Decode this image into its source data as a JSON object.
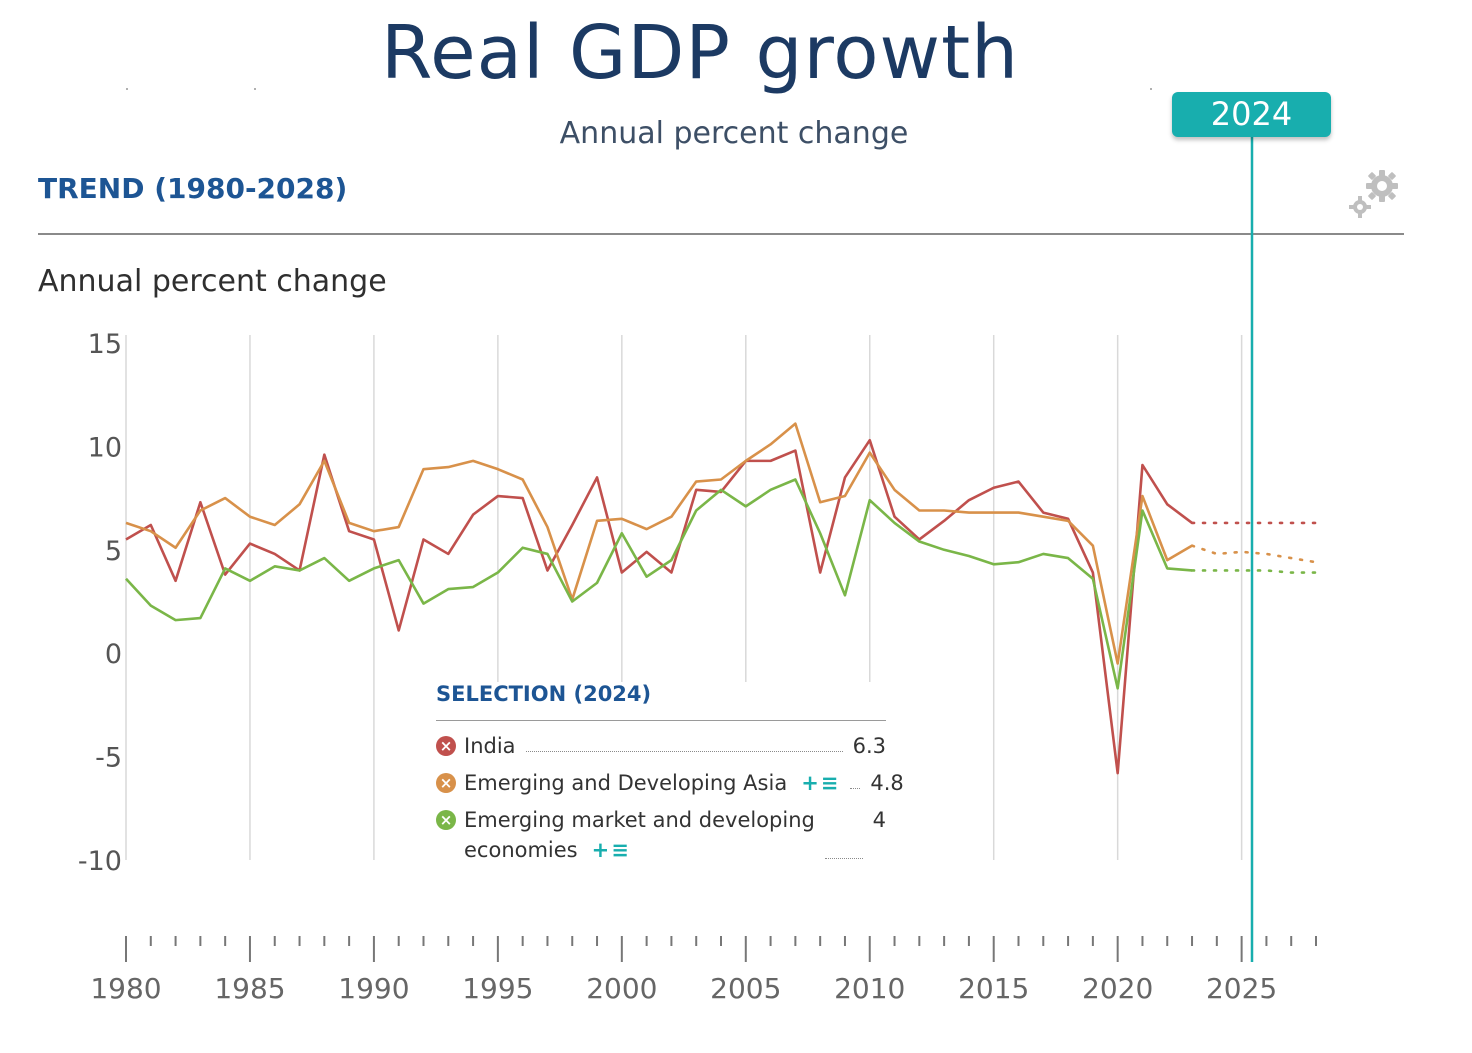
{
  "header": {
    "title": "Real GDP growth",
    "subtitle": "Annual percent change",
    "section": "TREND (1980-2028)",
    "axis_unit": "Annual percent change",
    "selected_year": "2024"
  },
  "legend": {
    "title": "SELECTION (2024)",
    "items": [
      {
        "name": "India",
        "value": "6.3",
        "color": "#c0504d",
        "has_add": false
      },
      {
        "name": "Emerging and Developing Asia",
        "value": "4.8",
        "color": "#d8914a",
        "has_add": true
      },
      {
        "name_line1": "Emerging market and developing",
        "name_line2": "economies",
        "value": "4",
        "color": "#7ab648",
        "has_add": true
      }
    ],
    "add_symbol": "+≡"
  },
  "colors": {
    "accent": "#18aeae",
    "title": "#1c3a63",
    "section": "#1d5594"
  },
  "chart_data": {
    "type": "line",
    "title": "Real GDP growth",
    "ylabel": "Annual percent change",
    "ylim": [
      -10,
      15
    ],
    "xlim": [
      1980,
      2028
    ],
    "y_ticks": [
      15,
      10,
      5,
      0,
      -5,
      -10
    ],
    "x_ticks": [
      1980,
      1985,
      1990,
      1995,
      2000,
      2005,
      2010,
      2015,
      2020,
      2025
    ],
    "series": [
      {
        "name": "India",
        "color": "#c0504d",
        "x": [
          1980,
          1981,
          1982,
          1983,
          1984,
          1985,
          1986,
          1987,
          1988,
          1989,
          1990,
          1991,
          1992,
          1993,
          1994,
          1995,
          1996,
          1997,
          1998,
          1999,
          2000,
          2001,
          2002,
          2003,
          2004,
          2005,
          2006,
          2007,
          2008,
          2009,
          2010,
          2011,
          2012,
          2013,
          2014,
          2015,
          2016,
          2017,
          2018,
          2019,
          2020,
          2021,
          2022,
          2023
        ],
        "values": [
          5.5,
          6.2,
          3.5,
          7.3,
          3.8,
          5.3,
          4.8,
          4.0,
          9.6,
          5.9,
          5.5,
          1.1,
          5.5,
          4.8,
          6.7,
          7.6,
          7.5,
          4.0,
          6.2,
          8.5,
          3.9,
          4.9,
          3.9,
          7.9,
          7.8,
          9.3,
          9.3,
          9.8,
          3.9,
          8.5,
          10.3,
          6.6,
          5.5,
          6.4,
          7.4,
          8.0,
          8.3,
          6.8,
          6.5,
          3.9,
          -5.8,
          9.1,
          7.2,
          6.3
        ],
        "projection_x": [
          2024,
          2025,
          2026,
          2027,
          2028
        ],
        "projection": [
          6.3,
          6.3,
          6.3,
          6.3,
          6.3
        ]
      },
      {
        "name": "Emerging and Developing Asia",
        "color": "#d8914a",
        "x": [
          1980,
          1981,
          1982,
          1983,
          1984,
          1985,
          1986,
          1987,
          1988,
          1989,
          1990,
          1991,
          1992,
          1993,
          1994,
          1995,
          1996,
          1997,
          1998,
          1999,
          2000,
          2001,
          2002,
          2003,
          2004,
          2005,
          2006,
          2007,
          2008,
          2009,
          2010,
          2011,
          2012,
          2013,
          2014,
          2015,
          2016,
          2017,
          2018,
          2019,
          2020,
          2021,
          2022,
          2023
        ],
        "values": [
          6.3,
          5.9,
          5.1,
          6.9,
          7.5,
          6.6,
          6.2,
          7.2,
          9.3,
          6.3,
          5.9,
          6.1,
          8.9,
          9.0,
          9.3,
          8.9,
          8.4,
          6.1,
          2.6,
          6.4,
          6.5,
          6.0,
          6.6,
          8.3,
          8.4,
          9.3,
          10.1,
          11.1,
          7.3,
          7.6,
          9.7,
          7.9,
          6.9,
          6.9,
          6.8,
          6.8,
          6.8,
          6.6,
          6.4,
          5.2,
          -0.5,
          7.6,
          4.5,
          5.2
        ],
        "projection_x": [
          2024,
          2025,
          2026,
          2027,
          2028
        ],
        "projection": [
          4.8,
          4.9,
          4.8,
          4.6,
          4.4
        ]
      },
      {
        "name": "Emerging market and developing economies",
        "color": "#7ab648",
        "x": [
          1980,
          1981,
          1982,
          1983,
          1984,
          1985,
          1986,
          1987,
          1988,
          1989,
          1990,
          1991,
          1992,
          1993,
          1994,
          1995,
          1996,
          1997,
          1998,
          1999,
          2000,
          2001,
          2002,
          2003,
          2004,
          2005,
          2006,
          2007,
          2008,
          2009,
          2010,
          2011,
          2012,
          2013,
          2014,
          2015,
          2016,
          2017,
          2018,
          2019,
          2020,
          2021,
          2022,
          2023
        ],
        "values": [
          3.6,
          2.3,
          1.6,
          1.7,
          4.1,
          3.5,
          4.2,
          4.0,
          4.6,
          3.5,
          4.1,
          4.5,
          2.4,
          3.1,
          3.2,
          3.9,
          5.1,
          4.8,
          2.5,
          3.4,
          5.8,
          3.7,
          4.5,
          6.9,
          7.9,
          7.1,
          7.9,
          8.4,
          5.8,
          2.8,
          7.4,
          6.3,
          5.4,
          5.0,
          4.7,
          4.3,
          4.4,
          4.8,
          4.6,
          3.6,
          -1.7,
          6.9,
          4.1,
          4.0
        ],
        "projection_x": [
          2024,
          2025,
          2026,
          2027,
          2028
        ],
        "projection": [
          4.0,
          4.0,
          4.0,
          3.9,
          3.9
        ]
      }
    ]
  }
}
